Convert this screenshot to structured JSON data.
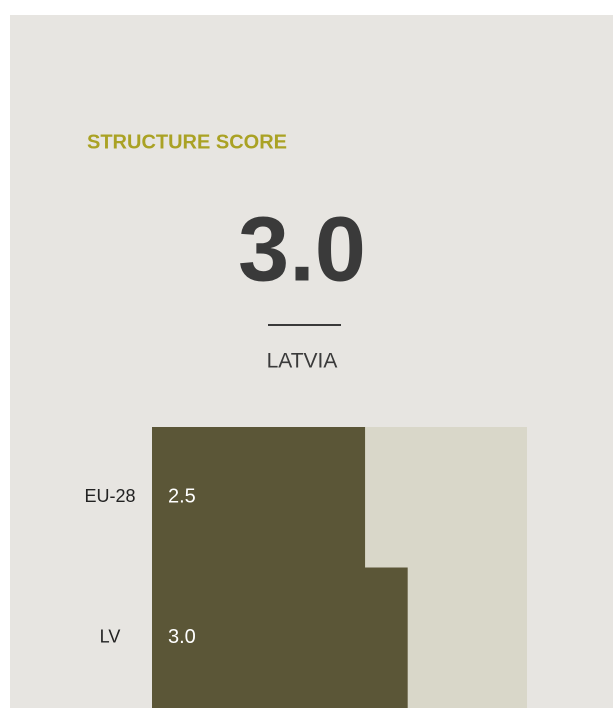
{
  "header": {
    "title": "STRUCTURE SCORE",
    "score": "3.0",
    "country": "LATVIA"
  },
  "chart_data": {
    "type": "bar",
    "orientation": "horizontal",
    "categories": [
      "EU-28",
      "LV"
    ],
    "values": [
      2.5,
      3
    ],
    "value_labels": [
      "2.5",
      "3.0"
    ],
    "color": "#5b5637",
    "track_color": "#d9d7c9",
    "xlim": [
      0,
      4.4
    ]
  }
}
